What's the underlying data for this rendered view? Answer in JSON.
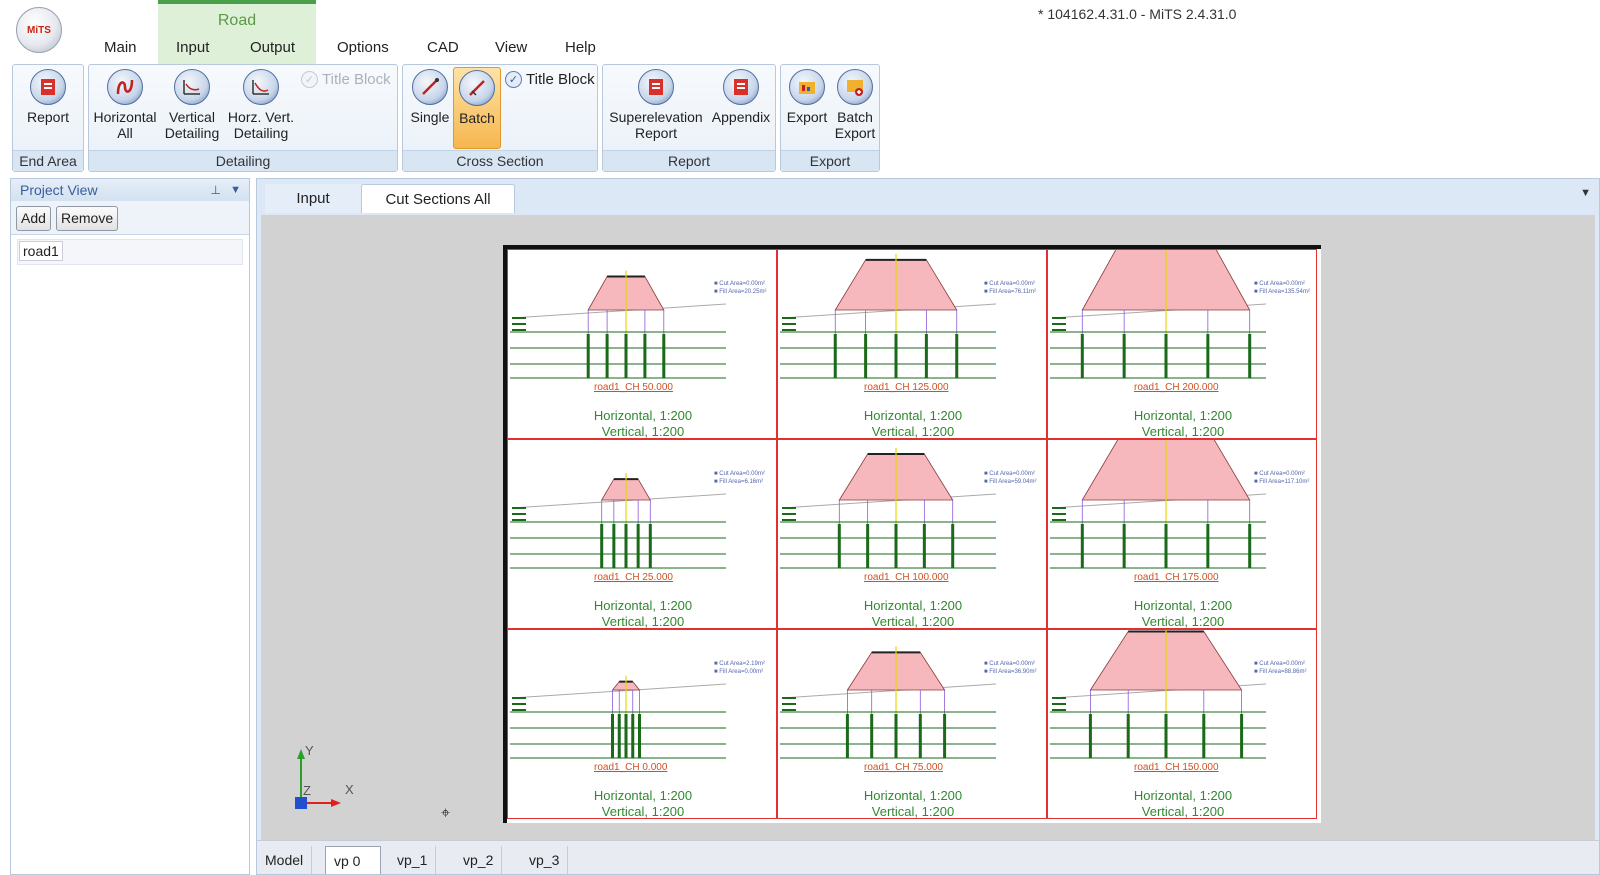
{
  "window": {
    "title": "* 104162.4.31.0 - MiTS 2.4.31.0",
    "logo_text": "MiTS"
  },
  "context_tab": {
    "label": "Road"
  },
  "menu": {
    "main": "Main",
    "input": "Input",
    "output": "Output",
    "options": "Options",
    "cad": "CAD",
    "view": "View",
    "help": "Help"
  },
  "ribbon": {
    "end_area": {
      "label": "End Area",
      "report": "Report"
    },
    "detailing": {
      "label": "Detailing",
      "horizontal_all_1": "Horizontal",
      "horizontal_all_2": "All",
      "vertical_1": "Vertical",
      "vertical_2": "Detailing",
      "horz_vert_1": "Horz. Vert.",
      "horz_vert_2": "Detailing",
      "title_block": "Title Block"
    },
    "cross_section": {
      "label": "Cross Section",
      "single": "Single",
      "batch": "Batch",
      "title_block": "Title Block"
    },
    "report": {
      "label": "Report",
      "superelevation_1": "Superelevation",
      "superelevation_2": "Report",
      "appendix": "Appendix"
    },
    "export": {
      "label": "Export",
      "export": "Export",
      "batch_1": "Batch",
      "batch_2": "Export"
    }
  },
  "project_view": {
    "title": "Project View",
    "add": "Add",
    "remove": "Remove",
    "items": [
      "road1"
    ]
  },
  "doc_tabs": [
    "Input",
    "Cut Sections All"
  ],
  "layout_tabs": [
    "Model",
    "vp 0",
    "vp_1",
    "vp_2",
    "vp_3"
  ],
  "sections": [
    {
      "chainage": "road1_CH 50.000",
      "horizontal": "Horizontal, 1:200",
      "vertical": "Vertical, 1:200",
      "cut": "Cut Area=0.00m²",
      "fill": "Fill Area=20.25m²"
    },
    {
      "chainage": "road1_CH 125.000",
      "horizontal": "Horizontal, 1:200",
      "vertical": "Vertical, 1:200",
      "cut": "Cut Area=0.00m²",
      "fill": "Fill Area=76.11m²"
    },
    {
      "chainage": "road1_CH 200.000",
      "horizontal": "Horizontal, 1:200",
      "vertical": "Vertical, 1:200",
      "cut": "Cut Area=0.00m²",
      "fill": "Fill Area=135.54m²"
    },
    {
      "chainage": "road1_CH 25.000",
      "horizontal": "Horizontal, 1:200",
      "vertical": "Vertical, 1:200",
      "cut": "Cut Area=0.00m²",
      "fill": "Fill Area=6.16m²"
    },
    {
      "chainage": "road1_CH 100.000",
      "horizontal": "Horizontal, 1:200",
      "vertical": "Vertical, 1:200",
      "cut": "Cut Area=0.00m²",
      "fill": "Fill Area=59.04m²"
    },
    {
      "chainage": "road1_CH 175.000",
      "horizontal": "Horizontal, 1:200",
      "vertical": "Vertical, 1:200",
      "cut": "Cut Area=0.00m²",
      "fill": "Fill Area=117.10m²"
    },
    {
      "chainage": "road1_CH 0.000",
      "horizontal": "Horizontal, 1:200",
      "vertical": "Vertical, 1:200",
      "cut": "Cut Area=2.19m²",
      "fill": "Fill Area=0.00m²"
    },
    {
      "chainage": "road1_CH 75.000",
      "horizontal": "Horizontal, 1:200",
      "vertical": "Vertical, 1:200",
      "cut": "Cut Area=0.00m²",
      "fill": "Fill Area=36.90m²"
    },
    {
      "chainage": "road1_CH 150.000",
      "horizontal": "Horizontal, 1:200",
      "vertical": "Vertical, 1:200",
      "cut": "Cut Area=0.00m²",
      "fill": "Fill Area=88.86m²"
    }
  ],
  "ucs": {
    "x": "X",
    "y": "Y",
    "z": "Z"
  },
  "colors": {
    "accent": "#4aa04a",
    "ribbon_blue": "#d8e5f3",
    "section_border": "#e03030",
    "fill_area": "#f6b7bd",
    "scale_text": "#2f8a2f"
  }
}
